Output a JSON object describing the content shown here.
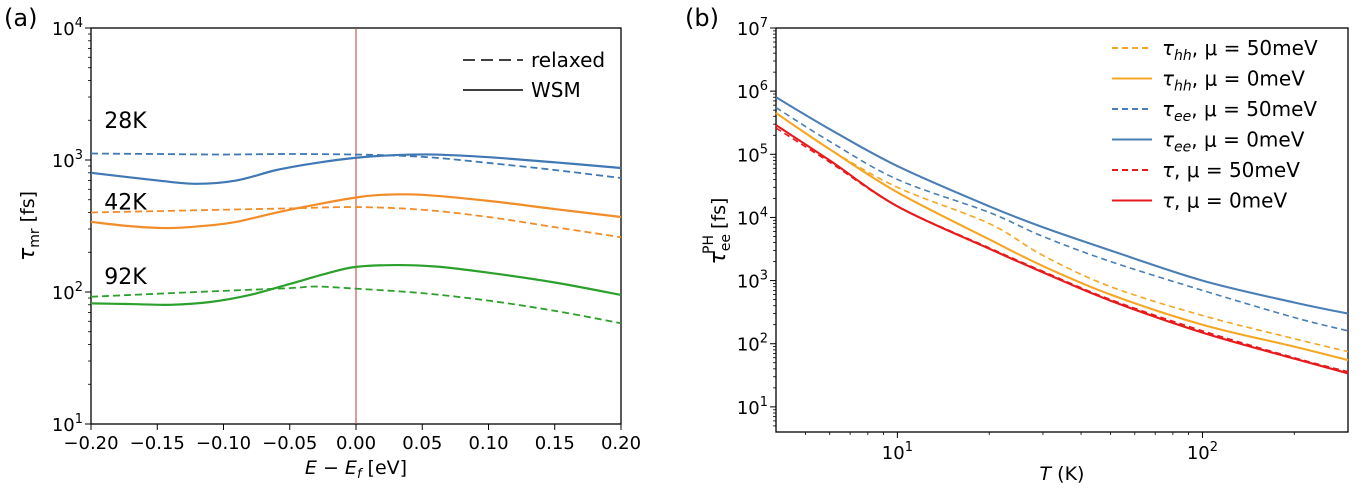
{
  "chart_data": [
    {
      "panel": "(a)",
      "type": "line",
      "xlabel_parts": [
        "E",
        " − ",
        "E",
        "f",
        " [eV]"
      ],
      "ylabel_parts": [
        "τ",
        "mr",
        " [fs]"
      ],
      "xscale": "linear",
      "yscale": "log",
      "xlim": [
        -0.2,
        0.2
      ],
      "ylim": [
        10,
        10000
      ],
      "xticks": [
        -0.2,
        -0.15,
        -0.1,
        -0.05,
        0.0,
        0.05,
        0.1,
        0.15,
        0.2
      ],
      "xtick_labels": [
        "−0.20",
        "−0.15",
        "−0.10",
        "−0.05",
        "0.00",
        "0.05",
        "0.10",
        "0.15",
        "0.20"
      ],
      "yticks": [
        10,
        100,
        1000,
        10000
      ],
      "ytick_labels": [
        [
          "10",
          "1"
        ],
        [
          "10",
          "2"
        ],
        [
          "10",
          "3"
        ],
        [
          "10",
          "4"
        ]
      ],
      "vline": {
        "x": 0.0,
        "color": "#b5422c"
      },
      "legend": {
        "placement": "top-right",
        "entries": [
          {
            "label": "relaxed",
            "style": "dashed"
          },
          {
            "label": "WSM",
            "style": "solid"
          }
        ]
      },
      "annotations": [
        {
          "text": "28K",
          "x": -0.19,
          "y": 1750,
          "color": "#4a77b4"
        },
        {
          "text": "42K",
          "x": -0.19,
          "y": 420,
          "color": "#e8853a"
        },
        {
          "text": "92K",
          "x": -0.19,
          "y": 115,
          "color": "#7ab55c"
        }
      ],
      "series": [
        {
          "temperature": "28K",
          "style": "solid",
          "color": "#3f78b5",
          "x": [
            -0.2,
            -0.15,
            -0.12,
            -0.09,
            -0.06,
            -0.03,
            0.0,
            0.03,
            0.06,
            0.1,
            0.15,
            0.2
          ],
          "y": [
            800,
            700,
            660,
            700,
            840,
            950,
            1040,
            1090,
            1100,
            1050,
            960,
            870
          ]
        },
        {
          "temperature": "28K",
          "style": "dashed",
          "color": "#3f78b5",
          "x": [
            -0.2,
            -0.15,
            -0.1,
            -0.05,
            0.0,
            0.03,
            0.06,
            0.1,
            0.15,
            0.2
          ],
          "y": [
            1120,
            1110,
            1100,
            1110,
            1100,
            1080,
            1040,
            950,
            840,
            730
          ]
        },
        {
          "temperature": "42K",
          "style": "solid",
          "color": "#f28c28",
          "x": [
            -0.2,
            -0.17,
            -0.14,
            -0.11,
            -0.09,
            -0.06,
            -0.03,
            0.0,
            0.02,
            0.05,
            0.1,
            0.15,
            0.2
          ],
          "y": [
            340,
            315,
            305,
            320,
            340,
            400,
            460,
            520,
            545,
            545,
            490,
            425,
            370
          ]
        },
        {
          "temperature": "42K",
          "style": "dashed",
          "color": "#f28c28",
          "x": [
            -0.2,
            -0.15,
            -0.1,
            -0.05,
            0.0,
            0.05,
            0.1,
            0.15,
            0.2
          ],
          "y": [
            400,
            410,
            420,
            430,
            440,
            420,
            370,
            310,
            260
          ]
        },
        {
          "temperature": "92K",
          "style": "solid",
          "color": "#2ca02c",
          "x": [
            -0.2,
            -0.17,
            -0.14,
            -0.11,
            -0.08,
            -0.05,
            -0.02,
            0.0,
            0.03,
            0.06,
            0.1,
            0.15,
            0.2
          ],
          "y": [
            82,
            81,
            80,
            84,
            95,
            115,
            140,
            155,
            160,
            156,
            140,
            118,
            95
          ]
        },
        {
          "temperature": "92K",
          "style": "dashed",
          "color": "#2ca02c",
          "x": [
            -0.2,
            -0.15,
            -0.1,
            -0.05,
            -0.03,
            0.0,
            0.05,
            0.1,
            0.15,
            0.2
          ],
          "y": [
            92,
            97,
            102,
            107,
            110,
            106,
            98,
            86,
            72,
            58
          ]
        }
      ]
    },
    {
      "panel": "(b)",
      "type": "line",
      "xlabel_parts": [
        "T",
        " (K)"
      ],
      "ylabel_parts": [
        "τ",
        "ee",
        "PH",
        " [fs]"
      ],
      "xscale": "log",
      "yscale": "log",
      "xlim": [
        4,
        300
      ],
      "ylim": [
        4,
        10000000
      ],
      "xticks": [
        10,
        100
      ],
      "xtick_labels": [
        [
          "10",
          "1"
        ],
        [
          "10",
          "2"
        ]
      ],
      "yticks": [
        10,
        100,
        1000,
        10000,
        100000,
        1000000,
        10000000
      ],
      "ytick_labels": [
        [
          "10",
          "1"
        ],
        [
          "10",
          "2"
        ],
        [
          "10",
          "3"
        ],
        [
          "10",
          "4"
        ],
        [
          "10",
          "5"
        ],
        [
          "10",
          "6"
        ],
        [
          "10",
          "7"
        ]
      ],
      "legend": {
        "placement": "top-right",
        "entries": [
          {
            "sym": "τ",
            "sub": "hh",
            "rest": ", μ = 50meV",
            "style": "dashed",
            "color": "#f5a623"
          },
          {
            "sym": "τ",
            "sub": "hh",
            "rest": ", μ = 0meV",
            "style": "solid",
            "color": "#f5a623"
          },
          {
            "sym": "τ",
            "sub": "ee",
            "rest": ", μ = 50meV",
            "style": "dashed",
            "color": "#4a7fb5"
          },
          {
            "sym": "τ",
            "sub": "ee",
            "rest": ", μ = 0meV",
            "style": "solid",
            "color": "#4a7fb5"
          },
          {
            "sym": "τ",
            "sub": "",
            "rest": ", μ = 50meV",
            "style": "dashed",
            "color": "#e8191b"
          },
          {
            "sym": "τ",
            "sub": "",
            "rest": ", μ = 0meV",
            "style": "solid",
            "color": "#e8191b"
          }
        ]
      },
      "series": [
        {
          "legend_index": 0,
          "style": "dashed",
          "color": "#f5a623",
          "x": [
            4,
            6,
            10,
            20,
            30,
            50,
            100,
            200,
            300
          ],
          "y": [
            450000,
            120000,
            30000,
            8000,
            2500,
            800,
            280,
            120,
            75
          ]
        },
        {
          "legend_index": 1,
          "style": "solid",
          "color": "#f5a623",
          "x": [
            4,
            6,
            10,
            20,
            30,
            50,
            100,
            200,
            300
          ],
          "y": [
            450000,
            120000,
            25000,
            4500,
            1700,
            600,
            200,
            90,
            55
          ]
        },
        {
          "legend_index": 2,
          "style": "dashed",
          "color": "#4a7fb5",
          "x": [
            4,
            6,
            10,
            20,
            30,
            50,
            100,
            200,
            300
          ],
          "y": [
            550000,
            160000,
            40000,
            12000,
            5000,
            2000,
            700,
            260,
            160
          ]
        },
        {
          "legend_index": 3,
          "style": "solid",
          "color": "#4a7fb5",
          "x": [
            4,
            6,
            10,
            20,
            30,
            50,
            100,
            200,
            300
          ],
          "y": [
            800000,
            250000,
            65000,
            15000,
            7000,
            3000,
            1000,
            450,
            300
          ]
        },
        {
          "legend_index": 4,
          "style": "dashed",
          "color": "#e8191b",
          "x": [
            4,
            6,
            10,
            20,
            30,
            50,
            100,
            200,
            300
          ],
          "y": [
            260000,
            75000,
            15000,
            3300,
            1400,
            500,
            160,
            60,
            36
          ]
        },
        {
          "legend_index": 5,
          "style": "solid",
          "color": "#e8191b",
          "x": [
            4,
            6,
            10,
            20,
            30,
            50,
            100,
            200,
            300
          ],
          "y": [
            290000,
            80000,
            15000,
            3200,
            1350,
            480,
            150,
            58,
            34
          ]
        }
      ]
    }
  ]
}
